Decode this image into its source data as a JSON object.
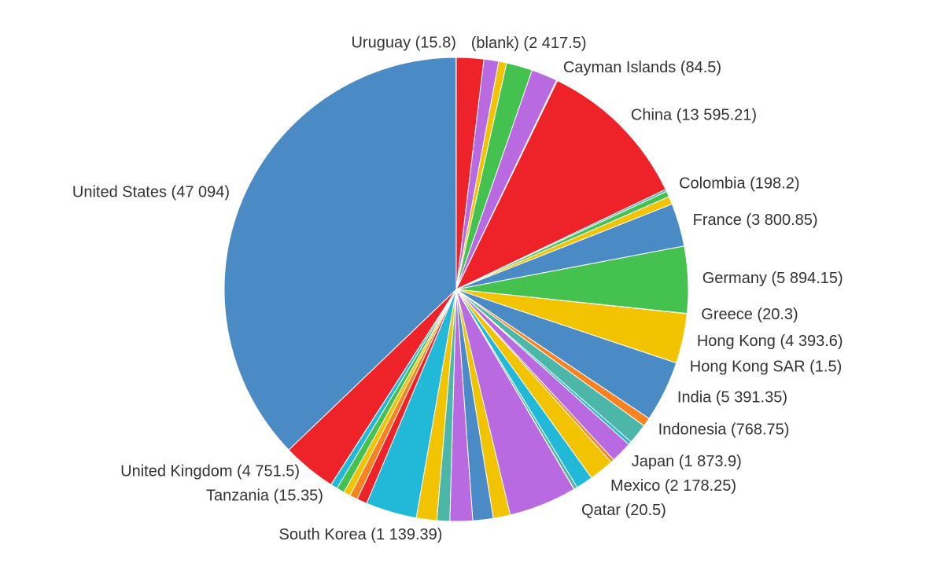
{
  "chart_data": {
    "type": "pie",
    "start_angle": 0,
    "direction": "clockwise",
    "labels": [
      "(blank) (2 417.5)",
      null,
      null,
      null,
      null,
      "Cayman Islands (84.5)",
      "China (13 595.21)",
      "Colombia (198.2)",
      null,
      null,
      "France (3 800.85)",
      "Germany (5 894.15)",
      "Greece (20.3)",
      "Hong Kong (4 393.6)",
      "Hong Kong SAR (1.5)",
      "India (5 391.35)",
      "Indonesia (768.75)",
      null,
      null,
      "Japan (1 873.9)",
      null,
      "Mexico (2 178.25)",
      null,
      null,
      "Qatar (20.5)",
      null,
      null,
      null,
      null,
      "South Korea (1 139.39)",
      null,
      null,
      null,
      null,
      null,
      null,
      null,
      "Tanzania (15.35)",
      "United Kingdom (4 751.5)",
      "United States (47 094)",
      "Uruguay (15.8)"
    ],
    "values": [
      2417.5,
      1300,
      700,
      2300,
      2300,
      84.5,
      13595.21,
      198.2,
      500,
      700,
      3800.85,
      5894.15,
      20.3,
      4393.6,
      1.5,
      5391.35,
      768.75,
      1800,
      300,
      1873.9,
      300,
      2178.25,
      1500,
      300,
      20.5,
      6000,
      1500,
      1800,
      2000,
      1139.39,
      1800,
      4500,
      900,
      700,
      600,
      700,
      600,
      15.35,
      4751.5,
      47094,
      15.8
    ],
    "colors": [
      "#ee2229",
      "#b96ae0",
      "#f2c300",
      "#45c150",
      "#b96ae0",
      "#22b8d8",
      "#ee2229",
      "#4cb6a8",
      "#45c150",
      "#f2c300",
      "#4a8bc6",
      "#45c150",
      "#22b8d8",
      "#f2c300",
      "#ee2229",
      "#4a8bc6",
      "#f7821f",
      "#4cb6a8",
      "#22b8d8",
      "#b96ae0",
      "#f7821f",
      "#f2c300",
      "#22b8d8",
      "#4cb6a8",
      "#b96ae0",
      "#b96ae0",
      "#f2c300",
      "#4a8bc6",
      "#b96ae0",
      "#4cb6a8",
      "#f2c300",
      "#22b8d8",
      "#ee2229",
      "#f7821f",
      "#f2c300",
      "#45c150",
      "#22b8d8",
      "#4cb6a8",
      "#ee2229",
      "#4a8bc6",
      "#22b8d8"
    ]
  }
}
